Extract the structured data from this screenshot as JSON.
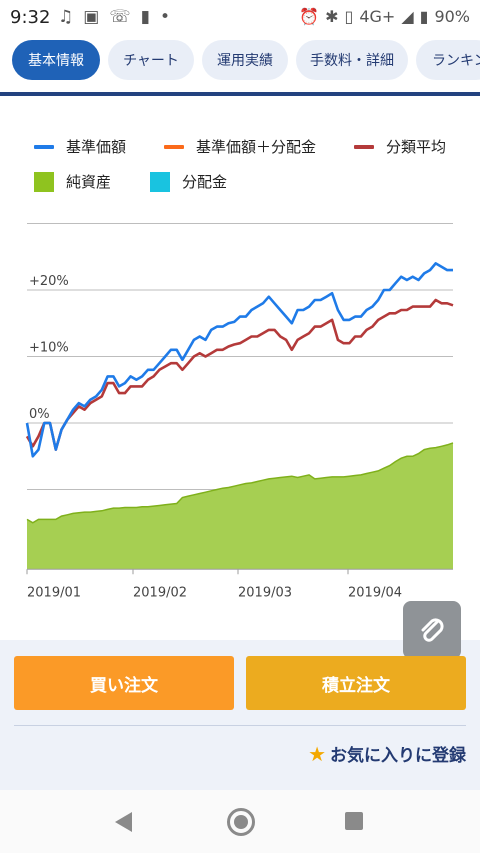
{
  "status": {
    "time": "9:32",
    "left_icons": [
      "music-note-icon",
      "image-icon",
      "wifi-calling-icon",
      "battery-charging-icon",
      "dot-icon"
    ],
    "network": "4G+",
    "battery": "90%"
  },
  "tabs": [
    {
      "label": "基本情報",
      "active": true
    },
    {
      "label": "チャート",
      "active": false
    },
    {
      "label": "運用実績",
      "active": false
    },
    {
      "label": "手数料・詳細",
      "active": false
    },
    {
      "label": "ランキン",
      "active": false
    }
  ],
  "legend": [
    {
      "label": "基準価額",
      "color": "#1f7be8",
      "kind": "line"
    },
    {
      "label": "基準価額＋分配金",
      "color": "#fb6a1a",
      "kind": "line"
    },
    {
      "label": "分類平均",
      "color": "#b43a3a",
      "kind": "line"
    },
    {
      "label": "純資産",
      "color": "#8fc31f",
      "kind": "box"
    },
    {
      "label": "分配金",
      "color": "#19c3e0",
      "kind": "box"
    }
  ],
  "chart_data": {
    "type": "line",
    "y_ticks": [
      "+20%",
      "+10%",
      "0%"
    ],
    "x_ticks": [
      "2019/01",
      "2019/02",
      "2019/03",
      "2019/04"
    ],
    "ylim": [
      -22,
      30
    ],
    "series": [
      {
        "name": "基準価額",
        "color": "#1f7be8",
        "values": [
          0,
          -5,
          -4,
          0,
          0,
          -4,
          -1,
          0.5,
          2,
          3,
          2.5,
          3.5,
          4,
          5,
          7,
          7,
          5.5,
          6,
          7,
          6.5,
          7,
          8,
          8,
          9,
          10,
          11,
          11,
          9.5,
          11,
          12.5,
          13,
          12.5,
          14,
          14.5,
          14.5,
          15,
          15.2,
          16,
          16,
          17,
          17.5,
          18,
          19,
          18,
          17,
          16,
          15,
          17,
          17,
          17.5,
          18.5,
          18.5,
          19,
          19.5,
          17,
          15.5,
          15.5,
          16,
          16,
          17,
          17.5,
          18.5,
          20,
          20,
          21,
          22,
          21.5,
          22,
          21.5,
          22.5,
          23,
          24,
          23.5,
          23,
          23
        ]
      },
      {
        "name": "分類平均",
        "color": "#b43a3a",
        "values": [
          -2,
          -3.5,
          -2,
          0,
          0,
          -4,
          -1,
          0.5,
          1.5,
          2.5,
          2,
          3,
          3.5,
          4,
          6,
          6,
          4.5,
          4.5,
          5.5,
          5.5,
          5.5,
          6.5,
          7,
          8,
          8.5,
          9,
          9,
          8,
          9,
          10,
          10.5,
          10,
          10.5,
          11,
          11,
          11.5,
          11.8,
          12,
          12.5,
          13,
          13,
          13.5,
          14,
          14,
          13,
          12.5,
          11,
          12.5,
          13,
          13.5,
          14.5,
          14.5,
          15,
          15.5,
          12.5,
          12,
          12,
          13,
          13,
          14,
          14.5,
          15.5,
          16,
          16.5,
          16.5,
          17,
          17,
          17.5,
          17.5,
          17.5,
          17.5,
          18.5,
          18,
          18,
          17.7
        ]
      },
      {
        "name": "純資産",
        "color": "#8fc31f",
        "values": [
          -14.5,
          -15,
          -14.5,
          -14.5,
          -14.5,
          -14.5,
          -14,
          -13.8,
          -13.6,
          -13.5,
          -13.4,
          -13.4,
          -13.3,
          -13.2,
          -13,
          -12.8,
          -12.8,
          -12.7,
          -12.7,
          -12.7,
          -12.6,
          -12.6,
          -12.5,
          -12.4,
          -12.3,
          -12.2,
          -12.1,
          -11.2,
          -11,
          -10.8,
          -10.6,
          -10.4,
          -10.2,
          -10,
          -9.8,
          -9.7,
          -9.5,
          -9.3,
          -9.1,
          -9,
          -8.8,
          -8.6,
          -8.4,
          -8.3,
          -8.2,
          -8.1,
          -8,
          -8.2,
          -8,
          -7.8,
          -8.4,
          -8.3,
          -8.2,
          -8.1,
          -8.1,
          -8.1,
          -8,
          -7.9,
          -7.8,
          -7.6,
          -7.4,
          -7.2,
          -6.8,
          -6.4,
          -5.8,
          -5.3,
          -5,
          -5,
          -4.6,
          -4,
          -3.8,
          -3.7,
          -3.5,
          -3.3,
          -3
        ]
      }
    ],
    "net_assets_baseline": -22
  },
  "actions": {
    "buy_label": "買い注文",
    "tsumitate_label": "積立注文",
    "favorite_label": "お気に入りに登録",
    "favorite_icon": "star-icon",
    "attach_icon": "paperclip-icon"
  },
  "nav": {
    "back_icon": "back-triangle-icon",
    "home_icon": "home-circle-icon",
    "recent_icon": "recent-square-icon"
  }
}
